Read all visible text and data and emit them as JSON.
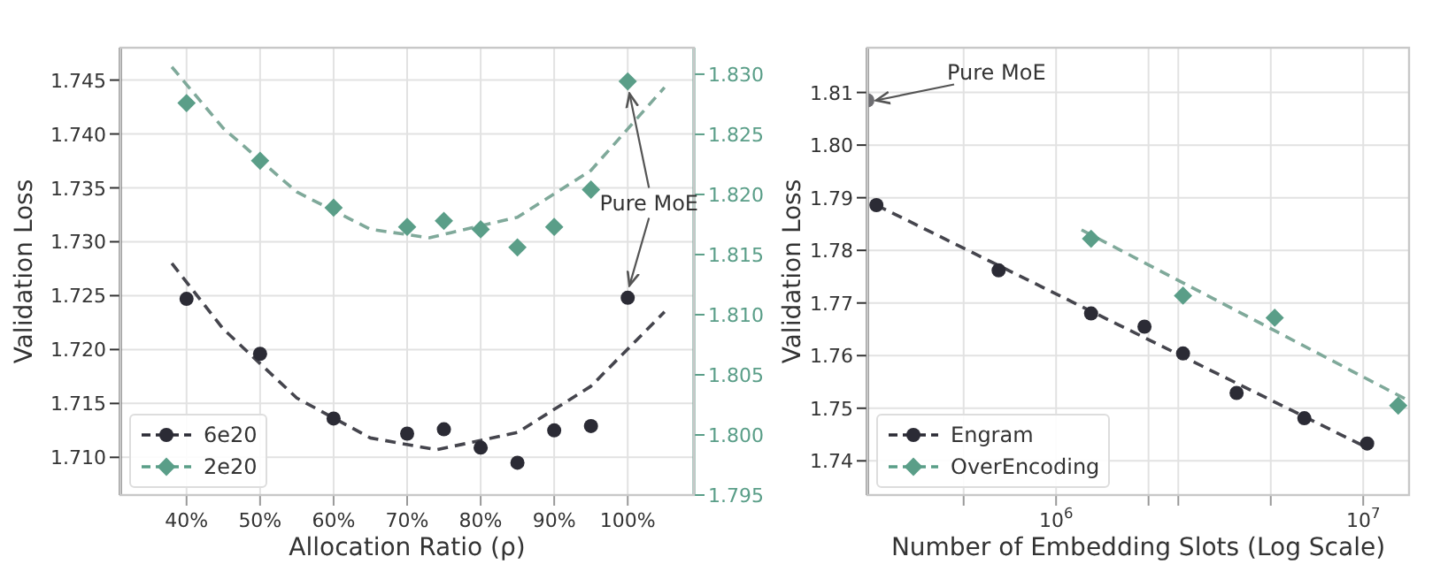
{
  "chart_data": [
    {
      "type": "scatter",
      "xlabel": "Allocation Ratio (ρ)",
      "ylabel": "Validation Loss",
      "xlim": [
        31,
        109
      ],
      "xticks": [
        {
          "value": 40,
          "label": "40%"
        },
        {
          "value": 50,
          "label": "50%"
        },
        {
          "value": 60,
          "label": "60%"
        },
        {
          "value": 70,
          "label": "70%"
        },
        {
          "value": 80,
          "label": "80%"
        },
        {
          "value": 90,
          "label": "90%"
        },
        {
          "value": 100,
          "label": "100%"
        }
      ],
      "ylim": [
        1.7065,
        1.748
      ],
      "yticks": [
        {
          "value": 1.71,
          "label": "1.710"
        },
        {
          "value": 1.715,
          "label": "1.715"
        },
        {
          "value": 1.72,
          "label": "1.720"
        },
        {
          "value": 1.725,
          "label": "1.725"
        },
        {
          "value": 1.73,
          "label": "1.730"
        },
        {
          "value": 1.735,
          "label": "1.735"
        },
        {
          "value": 1.74,
          "label": "1.740"
        },
        {
          "value": 1.745,
          "label": "1.745"
        }
      ],
      "y2lim": [
        1.795,
        1.8322
      ],
      "y2ticks": [
        {
          "value": 1.795,
          "label": "1.795"
        },
        {
          "value": 1.8,
          "label": "1.800"
        },
        {
          "value": 1.805,
          "label": "1.805"
        },
        {
          "value": 1.81,
          "label": "1.810"
        },
        {
          "value": 1.815,
          "label": "1.815"
        },
        {
          "value": 1.82,
          "label": "1.820"
        },
        {
          "value": 1.825,
          "label": "1.825"
        },
        {
          "value": 1.83,
          "label": "1.830"
        }
      ],
      "grid": true,
      "legend": "bottom left",
      "series": [
        {
          "name": "6e20",
          "marker": "circle",
          "color": "#2b2b35",
          "x": [
            40,
            50,
            60,
            70,
            75,
            80,
            85,
            90,
            95,
            100
          ],
          "values": [
            1.7247,
            1.7196,
            1.7136,
            1.7122,
            1.7126,
            1.7109,
            1.7095,
            1.7125,
            1.7129,
            1.7248
          ]
        },
        {
          "name": "2e20",
          "marker": "diamond",
          "axis": "y2",
          "color": "#5a9e88",
          "x": [
            40,
            50,
            60,
            70,
            75,
            80,
            85,
            90,
            95,
            100
          ],
          "values": [
            1.8276,
            1.8228,
            1.8189,
            1.8173,
            1.8178,
            1.8171,
            1.8156,
            1.8173,
            1.8204,
            1.8294
          ]
        },
        {
          "type": "line",
          "line_style": "dashed",
          "color": "#45454d",
          "x": [
            38,
            45,
            55,
            65,
            74,
            85,
            95,
            105
          ],
          "values": [
            1.728,
            1.7219,
            1.7155,
            1.7118,
            1.7107,
            1.7123,
            1.7166,
            1.7235
          ]
        },
        {
          "type": "line",
          "line_style": "dashed",
          "axis": "y2",
          "color": "#7fa99a",
          "x": [
            38,
            45,
            55,
            65,
            73,
            85,
            95,
            105
          ],
          "values": [
            1.8306,
            1.8255,
            1.8202,
            1.8171,
            1.8164,
            1.8181,
            1.822,
            1.8289
          ]
        }
      ],
      "annotations": [
        {
          "text": "Pure MoE",
          "x": 100,
          "y": 1.7248
        }
      ]
    },
    {
      "type": "scatter",
      "xlabel": "Number of Embedding Slots (Log Scale)",
      "ylabel": "Validation Loss",
      "log": "x",
      "xlim": [
        243000,
        14100000
      ],
      "xticks": [
        {
          "value": 500000,
          "label": null
        },
        {
          "value": 1000000,
          "label": "10$^{6}$"
        },
        {
          "value": 2000000,
          "label": null
        },
        {
          "value": 2500000,
          "label": null
        },
        {
          "value": 5000000,
          "label": null
        },
        {
          "value": 10000000,
          "label": "10$^{7}$"
        }
      ],
      "ylim": [
        1.7335,
        1.8185
      ],
      "yticks": [
        1.74,
        1.75,
        1.76,
        1.77,
        1.78,
        1.79,
        {
          "value": 1.8,
          "label": "1.80"
        },
        1.81
      ],
      "grid": true,
      "legend": "bottom left",
      "series": [
        {
          "name": "Engram",
          "marker": "circle",
          "color": "#2b2b35",
          "x": [
            260000,
            650000,
            1300000,
            1940000,
            2590000,
            3870000,
            6430000,
            10300000
          ],
          "values": [
            1.7886,
            1.7762,
            1.768,
            1.7655,
            1.7604,
            1.7529,
            1.7481,
            1.7433
          ]
        },
        {
          "name": "OverEncoding",
          "marker": "diamond",
          "color": "#5a9e88",
          "x": [
            1300000,
            2590000,
            5150000,
            13000000
          ],
          "values": [
            1.7822,
            1.7714,
            1.7672,
            1.7505
          ]
        },
        {
          "marker": "circle",
          "color": "#6e6e72",
          "x": [
            243000
          ],
          "values": [
            1.8085
          ]
        },
        {
          "type": "line",
          "line_style": "dashed",
          "color": "#45454d",
          "x": [
            260000,
            10300000
          ],
          "values": [
            1.7886,
            1.7425
          ]
        },
        {
          "type": "line",
          "line_style": "dashed",
          "color": "#7fa99a",
          "x": [
            1210000,
            14000000
          ],
          "values": [
            1.7839,
            1.7515
          ]
        }
      ],
      "annotations": [
        {
          "text": "Pure MoE",
          "x": 243000,
          "y": 1.8085
        }
      ]
    }
  ]
}
